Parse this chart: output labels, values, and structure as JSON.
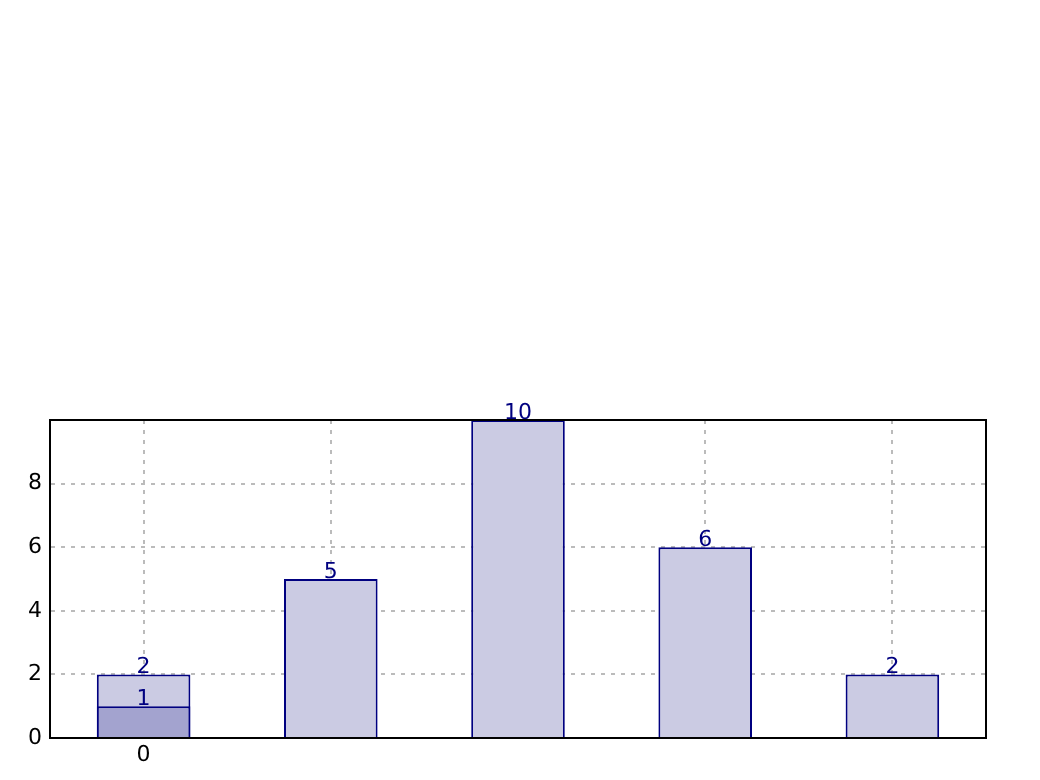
{
  "chart_data": {
    "type": "bar",
    "categories": [
      "0",
      null,
      null,
      null,
      null
    ],
    "series": [
      {
        "color": "#cbcbe3",
        "values": [
          2,
          5,
          10,
          6,
          2
        ]
      },
      {
        "color": "#a3a3cf",
        "values": [
          1,
          null,
          null,
          null,
          null
        ]
      }
    ],
    "ylim": [
      0,
      10
    ],
    "yticks": [
      0,
      2,
      4,
      6,
      8
    ],
    "grid": true,
    "data_labels": true,
    "legend": false
  }
}
